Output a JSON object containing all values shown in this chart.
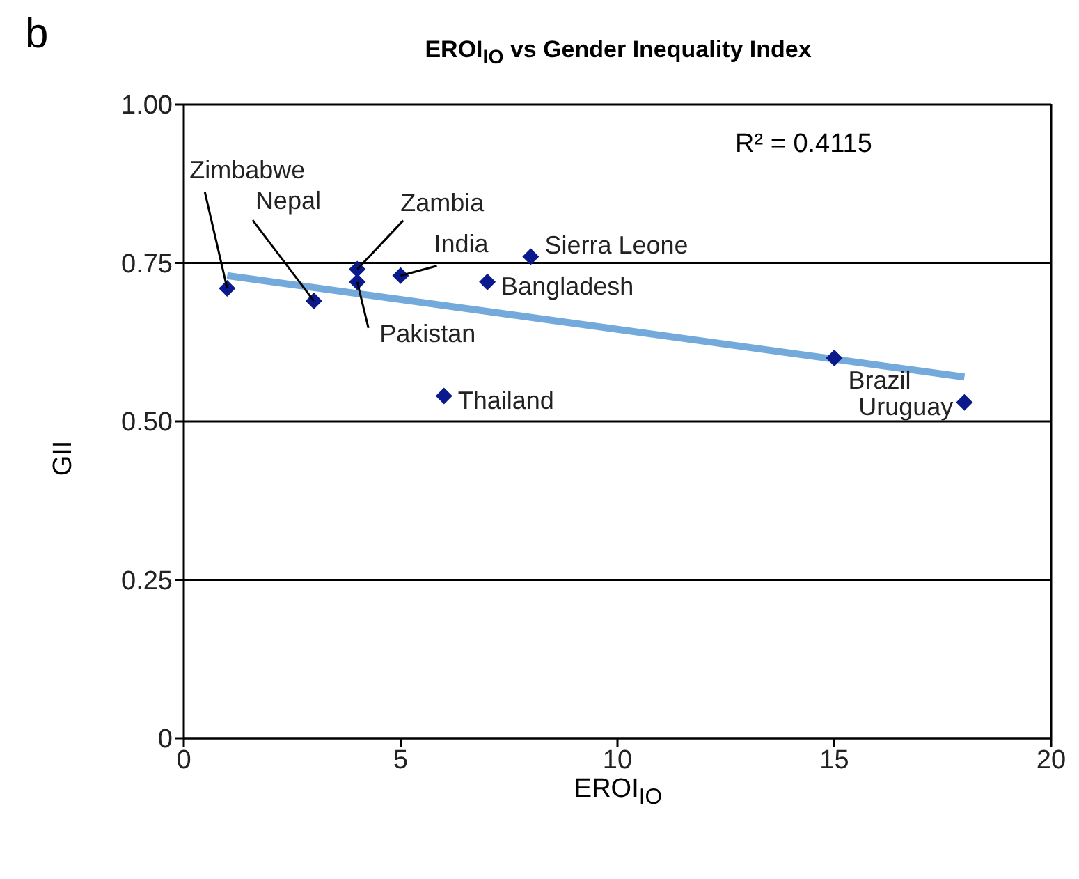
{
  "chart_data": {
    "type": "scatter",
    "title": "EROI$_{IO}$ vs Gender Inequality Index",
    "xlabel": "EROI$_{IO}$",
    "ylabel": "GII",
    "xlim": [
      0,
      20
    ],
    "xticks": [
      0,
      5,
      10,
      15,
      20
    ],
    "ylim": [
      0,
      1
    ],
    "yticks": [
      0,
      {
        "value": 0.25,
        "label": "0.25"
      },
      {
        "value": 0.5,
        "label": "0.50"
      },
      {
        "value": 0.75,
        "label": "0.75"
      },
      {
        "value": 1,
        "label": "1.00"
      }
    ],
    "grid": "y",
    "series": [
      {
        "color": "#0a1a8c",
        "marker": "diamond",
        "x": [
          1,
          3,
          4,
          4,
          5,
          8,
          7,
          6,
          15,
          18
        ],
        "values": [
          0.71,
          0.69,
          0.74,
          0.72,
          0.73,
          0.76,
          0.72,
          0.54,
          0.6,
          0.53
        ]
      },
      {
        "type": "line",
        "color": "#5b9bd5",
        "marker": "none",
        "x": [
          1,
          18
        ],
        "values": [
          0.73,
          0.57
        ]
      }
    ],
    "annotations": [
      "b",
      "R² = 0.4115",
      {
        "text": "Zimbabwe",
        "x": 1,
        "y": 0.71
      },
      {
        "text": "Nepal",
        "x": 3,
        "y": 0.69
      },
      {
        "text": "Zambia",
        "x": 4,
        "y": 0.74
      },
      {
        "text": "Pakistan",
        "x": 4,
        "y": 0.72
      },
      {
        "text": "India",
        "x": 5,
        "y": 0.73
      },
      {
        "text": "Sierra Leone",
        "x": 8,
        "y": 0.76
      },
      {
        "text": "Bangladesh",
        "x": 7,
        "y": 0.72
      },
      {
        "text": "Thailand",
        "x": 6,
        "y": 0.54
      },
      {
        "text": "Brazil",
        "x": 15,
        "y": 0.6
      },
      {
        "text": "Uruguay",
        "x": 18,
        "y": 0.53
      }
    ]
  }
}
